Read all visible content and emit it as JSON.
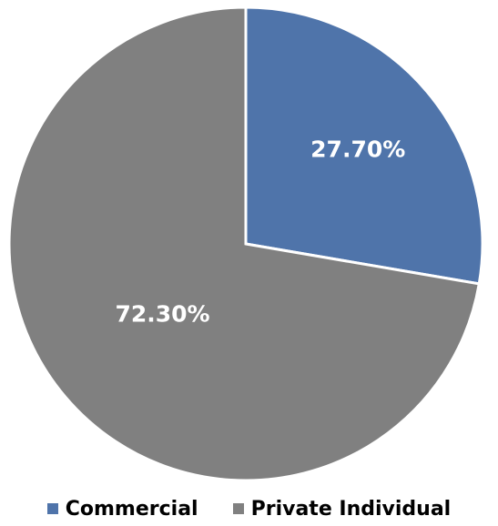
{
  "chart_data": {
    "type": "pie",
    "title": "",
    "start_angle_deg": 0,
    "direction": "clockwise",
    "legend_position": "bottom",
    "slices": [
      {
        "label": "Commercial",
        "value": 27.7,
        "display": "27.70%",
        "color": "#4f74aa"
      },
      {
        "label": "Private Individual",
        "value": 72.3,
        "display": "72.30%",
        "color": "#808080"
      }
    ]
  },
  "legend": {
    "items": [
      {
        "label": "Commercial",
        "color": "#4f74aa"
      },
      {
        "label": "Private Individual",
        "color": "#808080"
      }
    ]
  }
}
